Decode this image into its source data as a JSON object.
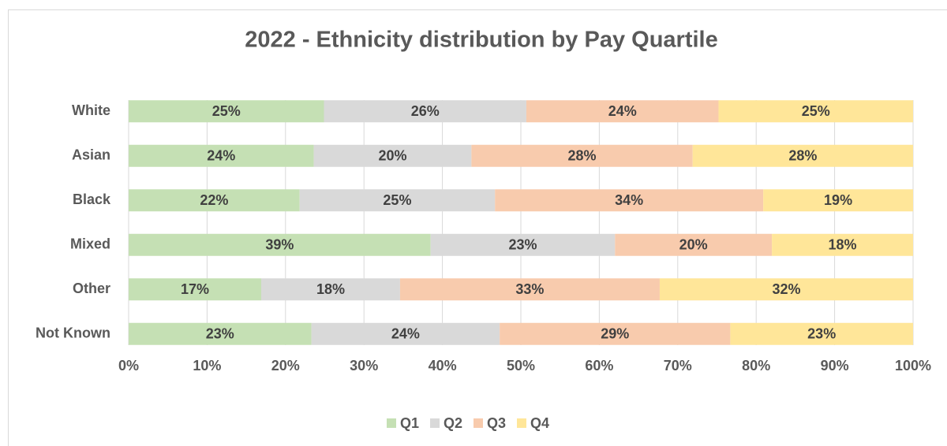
{
  "chart_data": {
    "type": "stacked_barh",
    "title": "2022 - Ethnicity distribution by Pay Quartile",
    "categories": [
      "White",
      "Asian",
      "Black",
      "Mixed",
      "Other",
      "Not Known"
    ],
    "series": [
      {
        "name": "Q1",
        "color": "#c5e0b4",
        "values": [
          24.9,
          23.6,
          21.8,
          38.5,
          16.9,
          23.3
        ],
        "value_labels": [
          "25%",
          "24%",
          "22%",
          "39%",
          "17%",
          "23%"
        ]
      },
      {
        "name": "Q2",
        "color": "#d9d9d9",
        "values": [
          25.8,
          20.1,
          24.9,
          23.5,
          17.7,
          24.0
        ],
        "value_labels": [
          "26%",
          "20%",
          "25%",
          "23%",
          "18%",
          "24%"
        ]
      },
      {
        "name": "Q3",
        "color": "#f8cbad",
        "values": [
          24.5,
          28.2,
          34.2,
          20.0,
          33.1,
          29.4
        ],
        "value_labels": [
          "24%",
          "28%",
          "34%",
          "20%",
          "33%",
          "29%"
        ]
      },
      {
        "name": "Q4",
        "color": "#ffe699",
        "values": [
          24.8,
          28.1,
          19.1,
          18.0,
          32.3,
          23.3
        ],
        "value_labels": [
          "25%",
          "28%",
          "19%",
          "18%",
          "32%",
          "23%"
        ]
      }
    ],
    "xlim": [
      0,
      100
    ],
    "xticks": [
      {
        "value": 0,
        "label": "0%"
      },
      {
        "value": 10,
        "label": "10%"
      },
      {
        "value": 20,
        "label": "20%"
      },
      {
        "value": 30,
        "label": "30%"
      },
      {
        "value": 40,
        "label": "40%"
      },
      {
        "value": 50,
        "label": "50%"
      },
      {
        "value": 60,
        "label": "60%"
      },
      {
        "value": 70,
        "label": "70%"
      },
      {
        "value": 80,
        "label": "80%"
      },
      {
        "value": 90,
        "label": "90%"
      },
      {
        "value": 100,
        "label": "100%"
      }
    ],
    "grid": true,
    "legend": "bottom"
  }
}
